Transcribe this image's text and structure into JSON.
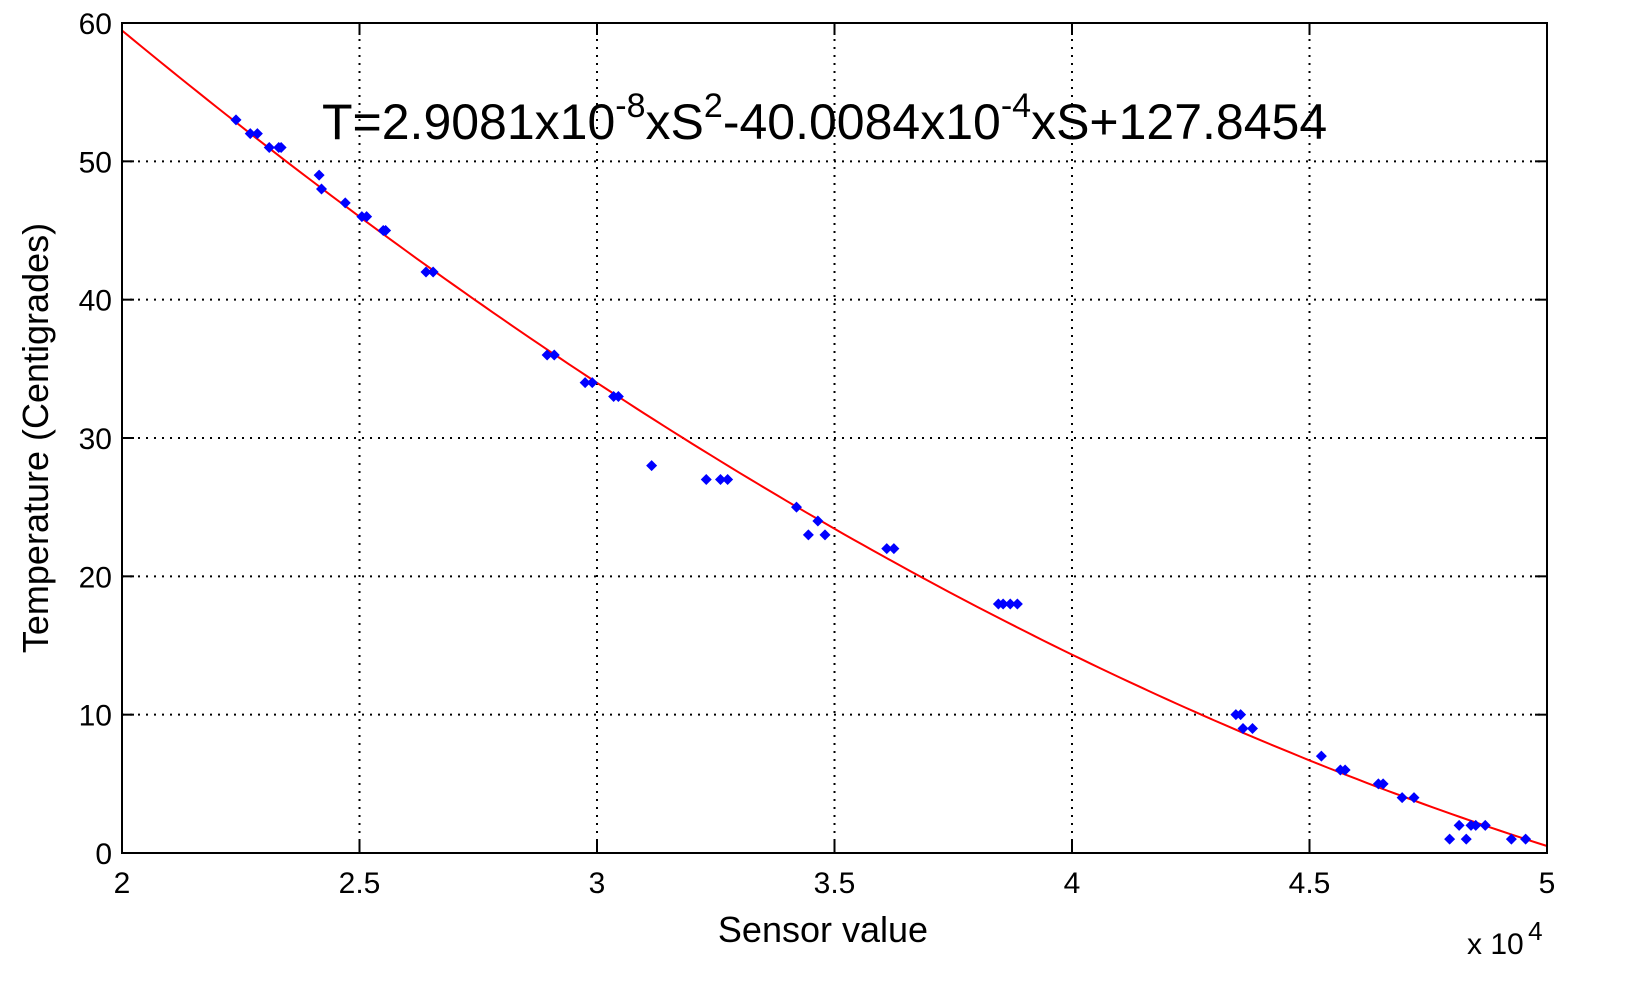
{
  "chart_data": {
    "type": "scatter",
    "xlabel": "Sensor value",
    "ylabel": "Temperature (Centigrades)",
    "x_multiplier": {
      "base": "x 10",
      "exponent": "4"
    },
    "xlim": [
      20000,
      50000
    ],
    "ylim": [
      0,
      60
    ],
    "x_ticks": [
      20000,
      25000,
      30000,
      35000,
      40000,
      45000,
      50000
    ],
    "x_tick_labels": [
      "2",
      "2.5",
      "3",
      "3.5",
      "4",
      "4.5",
      "5"
    ],
    "y_ticks": [
      0,
      10,
      20,
      30,
      40,
      50,
      60
    ],
    "y_tick_labels": [
      "0",
      "10",
      "20",
      "30",
      "40",
      "50",
      "60"
    ],
    "grid": true,
    "annotation": {
      "parts": [
        {
          "text": "T=2.9081x10",
          "sup": false
        },
        {
          "text": "-8",
          "sup": true
        },
        {
          "text": "xS",
          "sup": false
        },
        {
          "text": "2",
          "sup": true
        },
        {
          "text": "-40.0084x10",
          "sup": false
        },
        {
          "text": "-4",
          "sup": true
        },
        {
          "text": "xS+127.8454",
          "sup": false
        }
      ]
    },
    "fit": {
      "type": "line",
      "color": "#ff0000",
      "coefficients": {
        "a": 2.9081e-08,
        "b": -0.00400084,
        "c": 127.8454
      },
      "x_range": [
        20000,
        50000
      ]
    },
    "series": [
      {
        "color": "#0000ff",
        "marker": "diamond",
        "points": [
          [
            22400,
            53
          ],
          [
            22700,
            52
          ],
          [
            22850,
            52
          ],
          [
            23100,
            51
          ],
          [
            23300,
            51
          ],
          [
            23350,
            51
          ],
          [
            24150,
            49
          ],
          [
            24200,
            48
          ],
          [
            24700,
            47
          ],
          [
            25050,
            46
          ],
          [
            25150,
            46
          ],
          [
            25500,
            45
          ],
          [
            25550,
            45
          ],
          [
            26400,
            42
          ],
          [
            26550,
            42
          ],
          [
            28950,
            36
          ],
          [
            29100,
            36
          ],
          [
            29750,
            34
          ],
          [
            29900,
            34
          ],
          [
            30350,
            33
          ],
          [
            30450,
            33
          ],
          [
            31150,
            28
          ],
          [
            32300,
            27
          ],
          [
            32600,
            27
          ],
          [
            32750,
            27
          ],
          [
            34200,
            25
          ],
          [
            34450,
            23
          ],
          [
            34650,
            24
          ],
          [
            34800,
            23
          ],
          [
            36100,
            22
          ],
          [
            36250,
            22
          ],
          [
            38450,
            18
          ],
          [
            38550,
            18
          ],
          [
            38700,
            18
          ],
          [
            38850,
            18
          ],
          [
            43450,
            10
          ],
          [
            43550,
            10
          ],
          [
            43600,
            9
          ],
          [
            43800,
            9
          ],
          [
            45250,
            7
          ],
          [
            45650,
            6
          ],
          [
            45750,
            6
          ],
          [
            46450,
            5
          ],
          [
            46550,
            5
          ],
          [
            46950,
            4
          ],
          [
            47200,
            4
          ],
          [
            47950,
            1
          ],
          [
            48150,
            2
          ],
          [
            48300,
            1
          ],
          [
            48400,
            2
          ],
          [
            48500,
            2
          ],
          [
            48700,
            2
          ],
          [
            49250,
            1
          ],
          [
            49550,
            1
          ]
        ]
      }
    ]
  }
}
